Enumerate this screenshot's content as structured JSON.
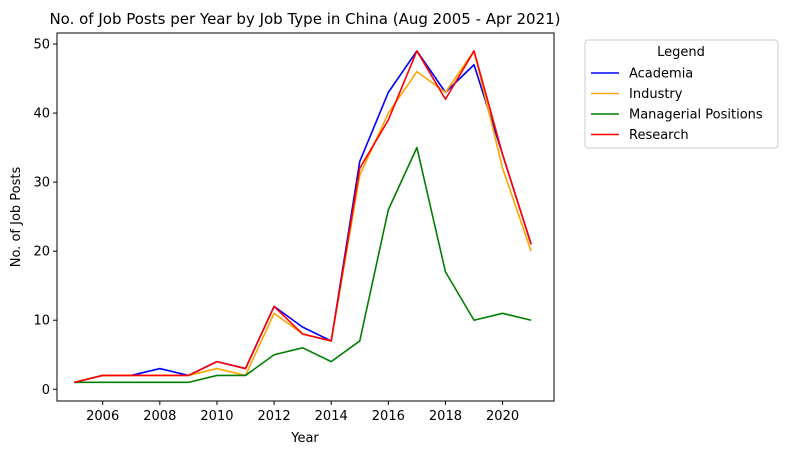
{
  "chart_data": {
    "type": "line",
    "title": "No. of Job Posts per Year by Job Type in China (Aug 2005 - Apr 2021)",
    "xlabel": "Year",
    "ylabel": "No. of Job Posts",
    "xlim": [
      2004.4,
      2021.8
    ],
    "ylim": [
      -1.7,
      51.6
    ],
    "x_ticks": [
      2006,
      2008,
      2010,
      2012,
      2014,
      2016,
      2018,
      2020
    ],
    "y_ticks": [
      0,
      10,
      20,
      30,
      40,
      50
    ],
    "grid": false,
    "legend_title": "Legend",
    "legend_placement": "outside-upper-right",
    "x": [
      2005,
      2006,
      2007,
      2008,
      2009,
      2010,
      2011,
      2012,
      2013,
      2014,
      2015,
      2016,
      2017,
      2018,
      2019,
      2020,
      2021
    ],
    "series": [
      {
        "name": "Academia",
        "color": "#0000ff",
        "values": [
          1,
          2,
          2,
          3,
          2,
          4,
          3,
          12,
          9,
          7,
          33,
          43,
          49,
          43,
          47,
          34,
          21
        ]
      },
      {
        "name": "Industry",
        "color": "#ffa500",
        "values": [
          1,
          2,
          2,
          2,
          2,
          3,
          2,
          11,
          8,
          7,
          31,
          40,
          46,
          43,
          49,
          32,
          20
        ]
      },
      {
        "name": "Managerial Positions",
        "color": "#008000",
        "values": [
          1,
          1,
          1,
          1,
          1,
          2,
          2,
          5,
          6,
          4,
          7,
          26,
          35,
          17,
          10,
          11,
          10
        ]
      },
      {
        "name": "Research",
        "color": "#ff0000",
        "values": [
          1,
          2,
          2,
          2,
          2,
          4,
          3,
          12,
          8,
          7,
          32,
          39,
          49,
          42,
          49,
          34,
          21
        ]
      }
    ]
  }
}
